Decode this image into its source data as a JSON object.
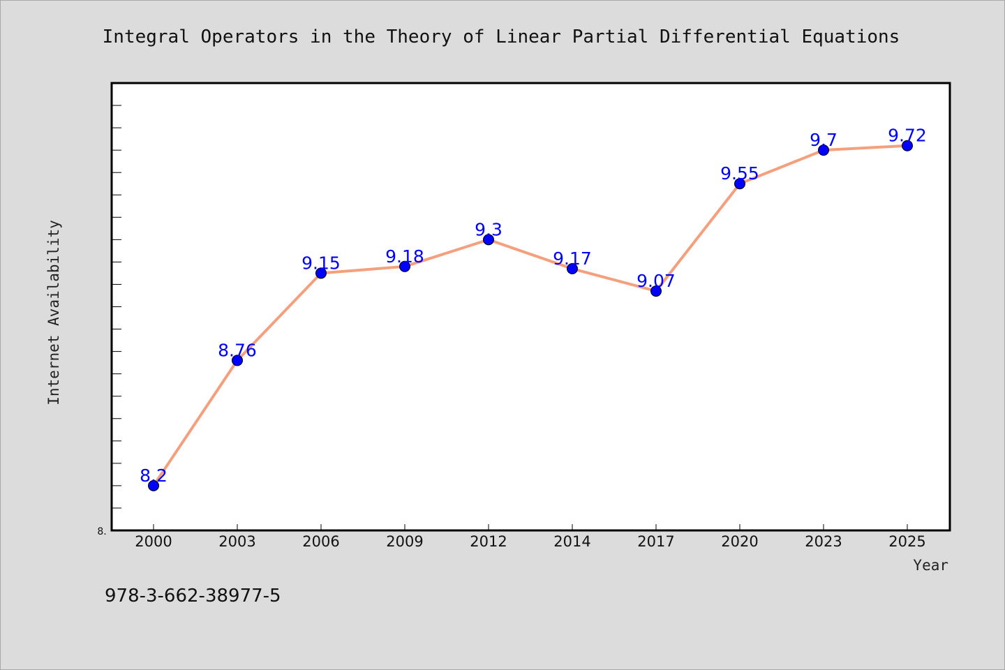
{
  "chart_data": {
    "type": "line",
    "title": "Integral Operators in the Theory of Linear Partial Differential Equations",
    "xlabel": "Year",
    "ylabel": "Internet Availability",
    "categories": [
      "2000",
      "2003",
      "2006",
      "2009",
      "2012",
      "2014",
      "2017",
      "2020",
      "2023",
      "2025"
    ],
    "series": [
      {
        "values": [
          8.2,
          8.76,
          9.15,
          9.18,
          9.3,
          9.17,
          9.07,
          9.55,
          9.7,
          9.72
        ]
      }
    ],
    "data_labels": [
      "8.2",
      "8.76",
      "9.15",
      "9.18",
      "9.3",
      "9.17",
      "9.07",
      "9.55",
      "9.7",
      "9.72"
    ],
    "ylim": [
      8.0,
      10.0
    ],
    "y_tick_label": "8.",
    "grid": false,
    "legend": "none",
    "colors": {
      "line": "#f4a07e",
      "marker": "#0000ff",
      "data_label": "#0000ff",
      "plot_background": "#ffffff",
      "figure_background": "#dcdcdc"
    }
  },
  "footer": {
    "isbn": "978-3-662-38977-5"
  }
}
